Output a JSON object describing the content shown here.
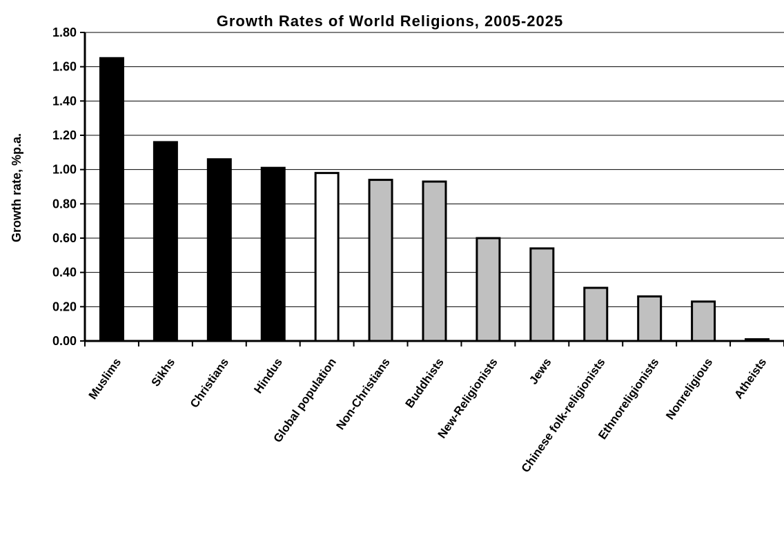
{
  "chart_data": {
    "type": "bar",
    "title": "Growth Rates of World Religions, 2005-2025",
    "xlabel": "",
    "ylabel": "Growth rate, %p.a.",
    "ylim": [
      0,
      1.8
    ],
    "yticks": [
      "0.00",
      "0.20",
      "0.40",
      "0.60",
      "0.80",
      "1.00",
      "1.20",
      "1.40",
      "1.60",
      "1.80"
    ],
    "grid": true,
    "categories": [
      "Muslims",
      "Sikhs",
      "Christians",
      "Hindus",
      "Global population",
      "Non-Christians",
      "Buddhists",
      "New-Religionists",
      "Jews",
      "Chinese folk-religionists",
      "Ethnoreligionists",
      "Nonreligious",
      "Atheists"
    ],
    "values": [
      1.65,
      1.16,
      1.06,
      1.01,
      0.98,
      0.94,
      0.93,
      0.6,
      0.54,
      0.31,
      0.26,
      0.23,
      0.01
    ],
    "bar_fills": [
      "#000000",
      "#000000",
      "#000000",
      "#000000",
      "#ffffff",
      "#c0c0c0",
      "#c0c0c0",
      "#c0c0c0",
      "#c0c0c0",
      "#c0c0c0",
      "#c0c0c0",
      "#c0c0c0",
      "#c0c0c0"
    ]
  }
}
